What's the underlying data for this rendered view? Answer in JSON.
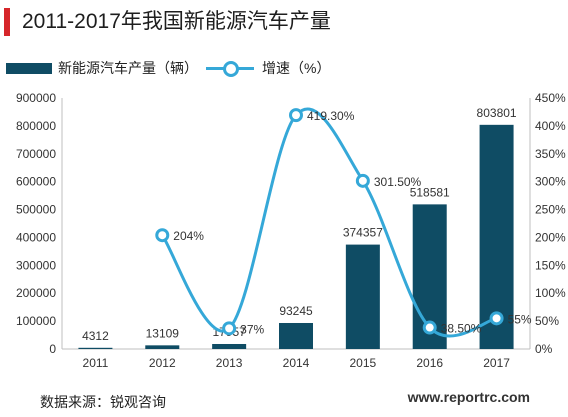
{
  "title": "2011-2017年我国新能源汽车产量",
  "legend": {
    "bar_label": "新能源汽车产量（辆）",
    "line_label": "增速（%）"
  },
  "footer": {
    "source": "数据来源：锐观咨询",
    "watermark": "www.reportrc.com"
  },
  "colors": {
    "bar": "#0f4c64",
    "line": "#35a8d8",
    "title_accent": "#d6262a"
  },
  "chart_data": {
    "type": "bar",
    "categories": [
      "2011",
      "2012",
      "2013",
      "2014",
      "2015",
      "2016",
      "2017"
    ],
    "series": [
      {
        "name": "新能源汽车产量（辆）",
        "type": "bar",
        "axis": "left",
        "values": [
          4312,
          13109,
          17957,
          93245,
          374357,
          518581,
          803801
        ],
        "labels": [
          "4312",
          "13109",
          "17957",
          "93245",
          "374357",
          "518581",
          "803801"
        ]
      },
      {
        "name": "增速（%）",
        "type": "line",
        "axis": "right",
        "values": [
          null,
          204,
          37,
          419.3,
          301.5,
          38.5,
          55
        ],
        "labels": [
          "",
          "204%",
          "37%",
          "419.30%",
          "301.50%",
          "38.50%",
          "55%"
        ]
      }
    ],
    "y_left": {
      "min": 0,
      "max": 900000,
      "ticks": [
        "0",
        "100000",
        "200000",
        "300000",
        "400000",
        "500000",
        "600000",
        "700000",
        "800000",
        "900000"
      ]
    },
    "y_right": {
      "min": 0,
      "max": 450,
      "ticks": [
        "0%",
        "50%",
        "100%",
        "150%",
        "200%",
        "250%",
        "300%",
        "350%",
        "400%",
        "450%"
      ]
    },
    "grid": false,
    "line_smooth": true,
    "legend_position": "top-left"
  }
}
